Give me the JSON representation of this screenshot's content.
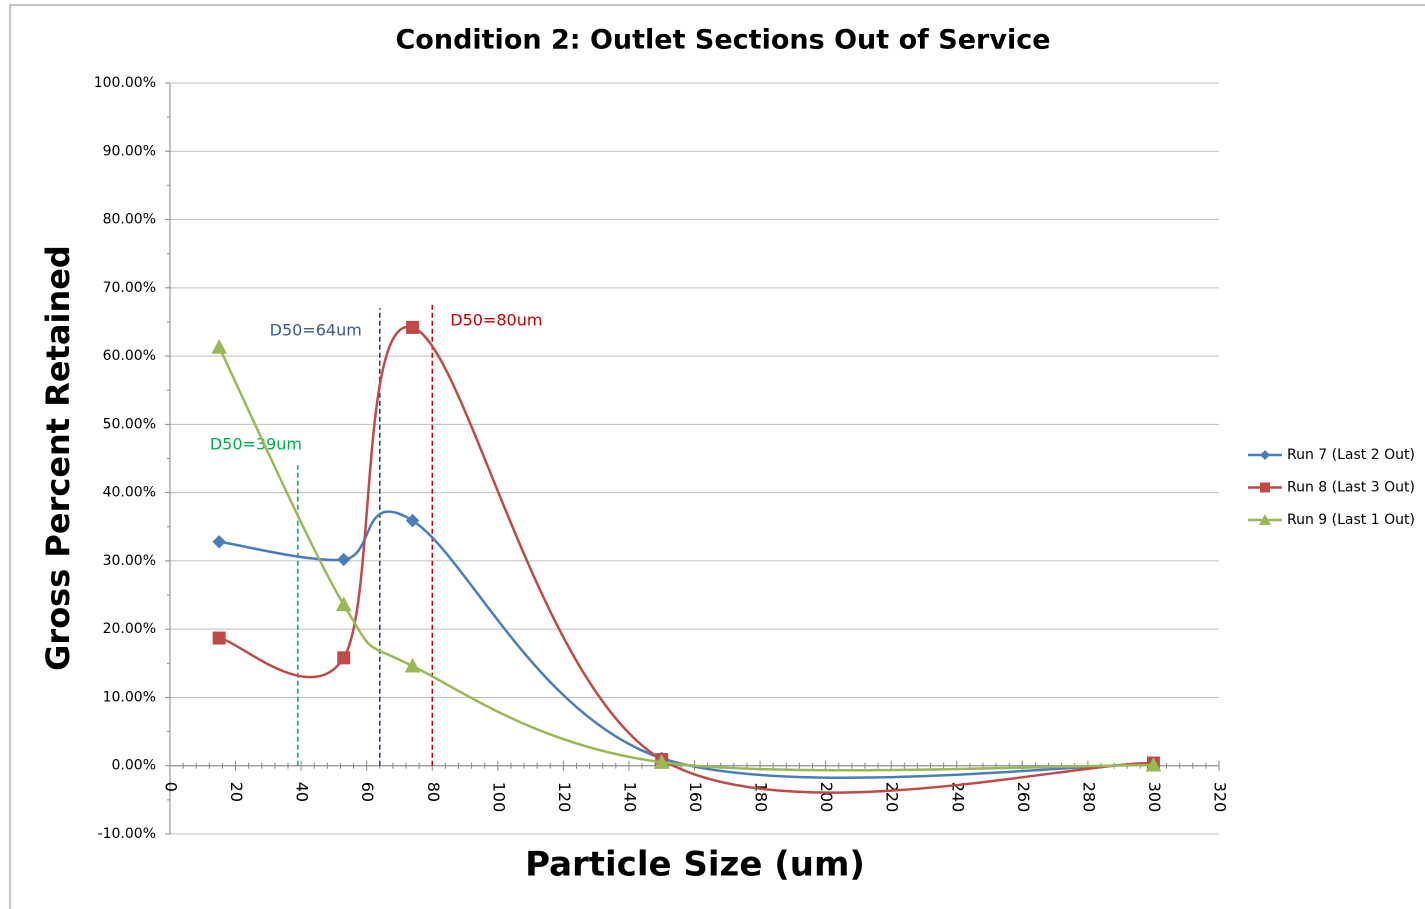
{
  "chart_data": {
    "type": "line",
    "smooth": true,
    "title": "Condition 2: Outlet Sections Out of Service",
    "xlabel": "Particle Size (um)",
    "ylabel": "Gross Percent Retained",
    "x": [
      15,
      53,
      74,
      150,
      300
    ],
    "series": [
      {
        "name": "Run 7 (Last 2 Out)",
        "color": "#4a7ebb",
        "marker": "diamond",
        "values": [
          32.8,
          30.2,
          35.9,
          1.1,
          0.2
        ]
      },
      {
        "name": "Run 8 (Last 3 Out)",
        "color": "#be4b48",
        "marker": "square",
        "values": [
          18.7,
          15.8,
          64.2,
          0.9,
          0.4
        ]
      },
      {
        "name": "Run 9 (Last 1 Out)",
        "color": "#98b954",
        "marker": "triangle",
        "values": [
          61.3,
          23.6,
          14.6,
          0.5,
          0.1
        ]
      }
    ],
    "annotations": [
      {
        "text": "D50=64um",
        "x": 64,
        "top": 67,
        "color": "#1f3864",
        "text_color": "#3b5998"
      },
      {
        "text": "D50=80um",
        "x": 80,
        "top": 67.5,
        "color": "#c00000",
        "text_color": "#c00000"
      },
      {
        "text": "D50=39um",
        "x": 39,
        "top": 44,
        "color": "#00b050",
        "text_color": "#00b050"
      }
    ],
    "xlim": [
      0,
      320
    ],
    "xticks": [
      0,
      20,
      40,
      60,
      80,
      100,
      120,
      140,
      160,
      180,
      200,
      220,
      240,
      260,
      280,
      300,
      320
    ],
    "ylim": [
      -10,
      100
    ],
    "yticks": [
      {
        "value": -10,
        "label": "-10.00%"
      },
      {
        "value": 0,
        "label": "0.00%"
      },
      {
        "value": 10,
        "label": "10.00%"
      },
      {
        "value": 20,
        "label": "20.00%"
      },
      {
        "value": 30,
        "label": "30.00%"
      },
      {
        "value": 40,
        "label": "40.00%"
      },
      {
        "value": 50,
        "label": "50.00%"
      },
      {
        "value": 60,
        "label": "60.00%"
      },
      {
        "value": 70,
        "label": "70.00%"
      },
      {
        "value": 80,
        "label": "80.00%"
      },
      {
        "value": 90,
        "label": "90.00%"
      },
      {
        "value": 100,
        "label": "100.00%"
      }
    ],
    "grid": true,
    "legend": "right"
  }
}
